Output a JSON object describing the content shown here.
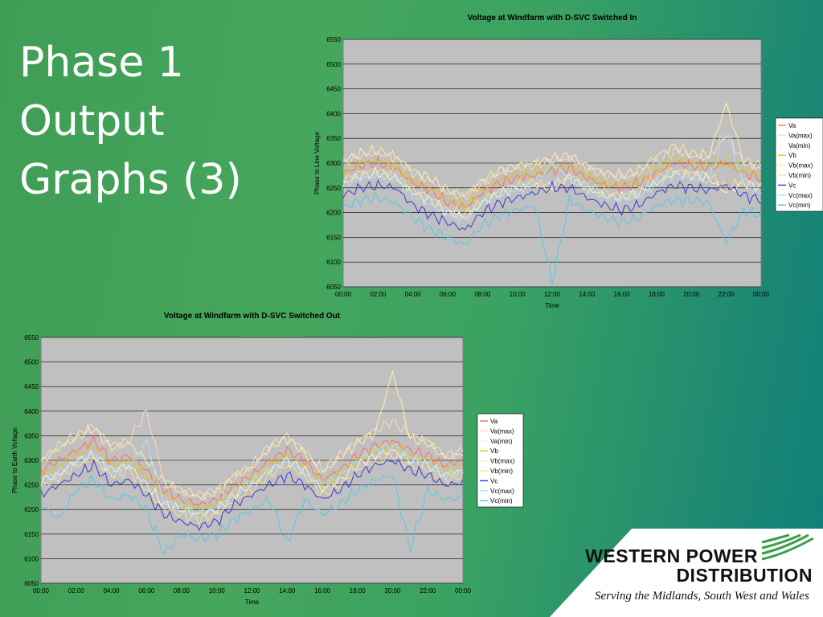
{
  "slide": {
    "title_lines": [
      "Phase 1",
      "Output",
      "Graphs (3)"
    ]
  },
  "logo": {
    "name_line1": "WESTERN POWER",
    "name_line2": "DISTRIBUTION",
    "tagline": "Serving the Midlands, South West and Wales",
    "colors": {
      "stripes": "#3a9d4a",
      "text": "#111111"
    }
  },
  "colors": {
    "plot_background": "#c0c0c0",
    "gridline": "#000000",
    "Va": "#ff6a6a",
    "Va(max)": "#ffd8c8",
    "Va(min)": "#fff0f0",
    "Vb": "#e8c800",
    "Vb(max)": "#fff2a0",
    "Vb(min)": "#fce28c",
    "Vc": "#3a3ad8",
    "Vc(max)": "#a8e4ff",
    "Vc(min)": "#50c8e8"
  },
  "chart_data": [
    {
      "type": "line",
      "title": "Voltage at Windfarm with D-SVC Switched In",
      "xlabel": "Time",
      "ylabel": "Phase to Line Voltage",
      "ylim": [
        6050,
        6550
      ],
      "yticks": [
        6050,
        6100,
        6150,
        6200,
        6250,
        6300,
        6350,
        6400,
        6450,
        6500,
        6550
      ],
      "xticks": [
        "00:00",
        "02:00",
        "04:00",
        "06:00",
        "08:00",
        "10:00",
        "12:00",
        "14:00",
        "16:00",
        "18:00",
        "20:00",
        "22:00",
        "00:00"
      ],
      "x": [
        0,
        1,
        2,
        3,
        4,
        5,
        6,
        7,
        8,
        9,
        10,
        11,
        12,
        13,
        14,
        15,
        16,
        17,
        18,
        19,
        20,
        21,
        22,
        23,
        24
      ],
      "grid": true,
      "legend_position": "right",
      "series": [
        {
          "name": "Va",
          "values": [
            6280,
            6295,
            6300,
            6290,
            6260,
            6245,
            6220,
            6210,
            6240,
            6260,
            6270,
            6275,
            6285,
            6290,
            6270,
            6255,
            6250,
            6260,
            6280,
            6300,
            6295,
            6290,
            6300,
            6280,
            6270
          ]
        },
        {
          "name": "Va(max)",
          "values": [
            6300,
            6315,
            6320,
            6310,
            6280,
            6265,
            6240,
            6230,
            6260,
            6280,
            6290,
            6295,
            6305,
            6310,
            6290,
            6275,
            6270,
            6280,
            6300,
            6325,
            6315,
            6310,
            6360,
            6300,
            6290
          ]
        },
        {
          "name": "Va(min)",
          "values": [
            6260,
            6275,
            6280,
            6270,
            6240,
            6225,
            6200,
            6190,
            6220,
            6240,
            6250,
            6255,
            6255,
            6270,
            6250,
            6235,
            6230,
            6240,
            6260,
            6280,
            6275,
            6270,
            6240,
            6260,
            6250
          ]
        },
        {
          "name": "Vb",
          "values": [
            6285,
            6300,
            6305,
            6295,
            6265,
            6250,
            6225,
            6215,
            6245,
            6265,
            6275,
            6280,
            6290,
            6295,
            6275,
            6260,
            6255,
            6265,
            6290,
            6310,
            6300,
            6295,
            6305,
            6285,
            6275
          ]
        },
        {
          "name": "Vb(max)",
          "values": [
            6305,
            6320,
            6325,
            6315,
            6285,
            6270,
            6245,
            6235,
            6265,
            6285,
            6295,
            6300,
            6310,
            6315,
            6295,
            6280,
            6275,
            6285,
            6315,
            6335,
            6320,
            6315,
            6420,
            6305,
            6295
          ]
        },
        {
          "name": "Vb(min)",
          "values": [
            6265,
            6280,
            6285,
            6275,
            6245,
            6230,
            6205,
            6195,
            6225,
            6245,
            6255,
            6260,
            6245,
            6275,
            6255,
            6240,
            6235,
            6245,
            6270,
            6285,
            6280,
            6275,
            6250,
            6265,
            6255
          ]
        },
        {
          "name": "Vc",
          "values": [
            6235,
            6250,
            6255,
            6250,
            6215,
            6195,
            6180,
            6165,
            6200,
            6220,
            6230,
            6240,
            6250,
            6250,
            6230,
            6215,
            6205,
            6215,
            6240,
            6255,
            6250,
            6245,
            6255,
            6235,
            6225
          ]
        },
        {
          "name": "Vc(max)",
          "values": [
            6255,
            6270,
            6275,
            6270,
            6235,
            6215,
            6200,
            6185,
            6220,
            6240,
            6250,
            6260,
            6300,
            6270,
            6250,
            6235,
            6225,
            6235,
            6260,
            6275,
            6270,
            6265,
            6365,
            6255,
            6245
          ]
        },
        {
          "name": "Vc(min)",
          "values": [
            6210,
            6225,
            6230,
            6220,
            6190,
            6165,
            6150,
            6135,
            6175,
            6195,
            6205,
            6215,
            6060,
            6225,
            6205,
            6190,
            6180,
            6190,
            6215,
            6225,
            6225,
            6220,
            6140,
            6205,
            6195
          ]
        }
      ]
    },
    {
      "type": "line",
      "title": "Voltage at Windfarm with D-SVC Switched Out",
      "xlabel": "Time",
      "ylabel": "Phase to Earth Voltage",
      "ylim": [
        6050,
        6550
      ],
      "yticks": [
        6050,
        6100,
        6150,
        6200,
        6250,
        6300,
        6350,
        6400,
        6450,
        6500,
        6550
      ],
      "xticks": [
        "00:00",
        "02:00",
        "04:00",
        "06:00",
        "08:00",
        "10:00",
        "12:00",
        "14:00",
        "16:00",
        "18:00",
        "20:00",
        "22:00",
        "00:00"
      ],
      "x": [
        0,
        1,
        2,
        3,
        4,
        5,
        6,
        7,
        8,
        9,
        10,
        11,
        12,
        13,
        14,
        15,
        16,
        17,
        18,
        19,
        20,
        21,
        22,
        23,
        24
      ],
      "grid": true,
      "legend_position": "right",
      "series": [
        {
          "name": "Va",
          "values": [
            6280,
            6300,
            6320,
            6340,
            6300,
            6310,
            6280,
            6240,
            6220,
            6210,
            6220,
            6250,
            6270,
            6300,
            6320,
            6300,
            6260,
            6280,
            6310,
            6330,
            6340,
            6320,
            6310,
            6290,
            6300
          ]
        },
        {
          "name": "Va(max)",
          "values": [
            6300,
            6330,
            6350,
            6370,
            6330,
            6340,
            6400,
            6260,
            6240,
            6230,
            6240,
            6270,
            6290,
            6330,
            6350,
            6320,
            6280,
            6310,
            6340,
            6360,
            6380,
            6350,
            6340,
            6310,
            6320
          ]
        },
        {
          "name": "Va(min)",
          "values": [
            6260,
            6270,
            6300,
            6310,
            6280,
            6290,
            6250,
            6210,
            6200,
            6190,
            6200,
            6230,
            6250,
            6280,
            6300,
            6280,
            6240,
            6260,
            6290,
            6310,
            6320,
            6300,
            6290,
            6270,
            6280
          ]
        },
        {
          "name": "Vb",
          "values": [
            6270,
            6290,
            6310,
            6330,
            6290,
            6300,
            6270,
            6230,
            6210,
            6200,
            6210,
            6240,
            6260,
            6290,
            6310,
            6290,
            6250,
            6270,
            6300,
            6320,
            6330,
            6310,
            6300,
            6280,
            6290
          ]
        },
        {
          "name": "Vb(max)",
          "values": [
            6295,
            6325,
            6345,
            6365,
            6325,
            6335,
            6300,
            6255,
            6235,
            6225,
            6235,
            6265,
            6285,
            6325,
            6345,
            6315,
            6275,
            6305,
            6335,
            6355,
            6480,
            6345,
            6335,
            6305,
            6315
          ]
        },
        {
          "name": "Vb(min)",
          "values": [
            6250,
            6265,
            6290,
            6305,
            6270,
            6280,
            6240,
            6200,
            6190,
            6180,
            6190,
            6220,
            6240,
            6270,
            6290,
            6270,
            6230,
            6250,
            6280,
            6300,
            6310,
            6290,
            6280,
            6260,
            6270
          ]
        },
        {
          "name": "Vc",
          "values": [
            6230,
            6250,
            6270,
            6290,
            6250,
            6260,
            6230,
            6190,
            6175,
            6165,
            6175,
            6210,
            6230,
            6250,
            6270,
            6250,
            6220,
            6240,
            6270,
            6290,
            6300,
            6280,
            6270,
            6250,
            6255
          ]
        },
        {
          "name": "Vc(max)",
          "values": [
            6250,
            6275,
            6295,
            6315,
            6275,
            6285,
            6340,
            6215,
            6200,
            6190,
            6200,
            6235,
            6255,
            6280,
            6300,
            6275,
            6245,
            6270,
            6300,
            6320,
            6330,
            6305,
            6295,
            6270,
            6275
          ]
        },
        {
          "name": "Vc(min)",
          "values": [
            6210,
            6180,
            6240,
            6260,
            6220,
            6230,
            6200,
            6110,
            6150,
            6140,
            6150,
            6180,
            6200,
            6220,
            6130,
            6220,
            6190,
            6210,
            6240,
            6260,
            6270,
            6120,
            6240,
            6220,
            6225
          ]
        }
      ]
    }
  ]
}
